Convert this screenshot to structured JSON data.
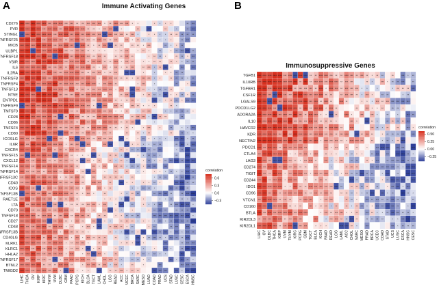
{
  "panels": {
    "a": {
      "letter": "A",
      "title": "Immune Activating Genes"
    },
    "b": {
      "letter": "B",
      "title": "Immunosuppressive Genes"
    }
  },
  "colors": {
    "high": "#d7301f",
    "mid": "#ffffff",
    "low": "#2c3e99"
  },
  "chart_data": [
    {
      "type": "heatmap",
      "title": "Immune Activating Genes",
      "rows": [
        "CD276",
        "PVR",
        "STING1",
        "TNFRSF25",
        "MICB",
        "ULBP1",
        "TNFRSF18",
        "VSIR",
        "IL6",
        "IL2RA",
        "TNFRSF8",
        "TNFRSF4",
        "TNFSF13",
        "NT5E",
        "ENTPD1",
        "TNFRSF9",
        "TNFSF9",
        "CD28",
        "CD86",
        "TNFSF4",
        "CD80",
        "ICOSLG",
        "IL6R",
        "CXCR4",
        "TNFSF15",
        "CXCL12",
        "TNFSF14",
        "TNFRSF14",
        "TNFRSF13C",
        "CD40",
        "ICOS",
        "TNFSF13B",
        "RAET1E",
        "LTA",
        "CD70",
        "TNFSF18",
        "CD27",
        "CD48",
        "TNFRSF13B",
        "CD40LG",
        "KLRK1",
        "KLRC1",
        "HHLA2",
        "TNFRSF17",
        "BTNL2",
        "TMIGD2"
      ],
      "columns": [
        "LIHC",
        "THCA",
        "OV",
        "KIRP",
        "KIRC",
        "THYM",
        "UVM",
        "DLBC",
        "GBM",
        "PAAD",
        "PCPG",
        "KICH",
        "BLCA",
        "TGCT",
        "LAML",
        "CHOL",
        "LGG",
        "READ",
        "ACC",
        "UCEC",
        "BRCA",
        "SARC",
        "MESO",
        "LUAD",
        "COAD",
        "PRAD",
        "UCS",
        "STAD",
        "LUSC",
        "CESC",
        "ESCA",
        "HNSC"
      ],
      "legend": {
        "title": "correlation",
        "ticks": [
          "0.6",
          "0.3",
          "0.0",
          "−0.3"
        ],
        "range": [
          -0.45,
          0.75
        ],
        "placement": "right"
      }
    },
    {
      "type": "heatmap",
      "title": "Immunosuppressive Genes",
      "rows": [
        "TGFB1",
        "IL10RB",
        "TGFBR1",
        "CSF1R",
        "LGALS9",
        "PDCD1LG2",
        "ADORA2A",
        "IL10",
        "HAVCR2",
        "KDR",
        "NECTIN2",
        "PDCD1",
        "CTLA4",
        "LAG3",
        "CD274",
        "TIGIT",
        "CD244",
        "IDO1",
        "CD96",
        "VTCN1",
        "CD160",
        "BTLA",
        "KIR2DL3",
        "KIR2DL1"
      ],
      "columns": [
        "LIHC",
        "OV",
        "DLBC",
        "THCA",
        "KIRP",
        "UVM",
        "THYM",
        "KIRC",
        "PCPG",
        "GBM",
        "TGCT",
        "BLCA",
        "KICH",
        "PAAD",
        "READ",
        "LGG",
        "LAML",
        "ACC",
        "CHOL",
        "SARC",
        "MESO",
        "PRAD",
        "BRCA",
        "UCEC",
        "COAD",
        "STAD",
        "UCS",
        "LUSC",
        "ESCA",
        "HNSC",
        "CESC"
      ],
      "legend": {
        "title": "correlation",
        "ticks": [
          "0.50",
          "0.25",
          "0.00",
          "−0.25"
        ],
        "range": [
          -0.4,
          0.6
        ],
        "placement": "right"
      }
    }
  ]
}
